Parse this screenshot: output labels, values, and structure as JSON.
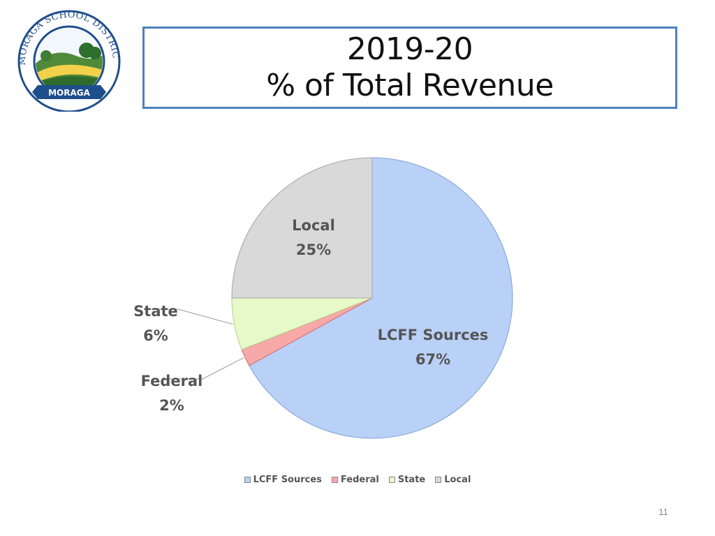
{
  "logo": {
    "arc_text": "MORAGA SCHOOL DISTRICT",
    "banner_text": "MORAGA"
  },
  "title": {
    "line1": "2019-20",
    "line2": "% of Total Revenue"
  },
  "colors": {
    "title_border": "#4f81bd",
    "label_text": "#555555"
  },
  "chart_data": {
    "type": "pie",
    "slices": [
      {
        "label": "LCFF Sources",
        "value": 67,
        "display": "67%",
        "color": "#b9d1f7",
        "icon": "square"
      },
      {
        "label": "Federal",
        "value": 2,
        "display": "2%",
        "color": "#f7a8a8",
        "icon": "square"
      },
      {
        "label": "State",
        "value": 6,
        "display": "6%",
        "color": "#e6f9c8",
        "icon": "square"
      },
      {
        "label": "Local",
        "value": 25,
        "display": "25%",
        "color": "#d9d9d9",
        "icon": "square"
      }
    ],
    "start": "12 o'clock",
    "direction": "clockwise",
    "legend_position": "bottom"
  },
  "page_number": "11"
}
